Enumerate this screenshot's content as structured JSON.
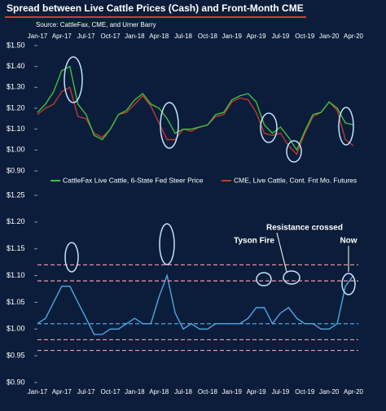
{
  "chart_data": [
    {
      "type": "line",
      "title": "Spread between Live Cattle Prices (Cash) and Front-Month CME",
      "subtitle": "Source: CattleFax, CME, and Urner Barry",
      "categories": [
        "Jan-17",
        null,
        null,
        "Apr-17",
        null,
        null,
        "Jul-17",
        null,
        null,
        "Oct-17",
        null,
        null,
        "Jan-18",
        null,
        null,
        "Apr-18",
        null,
        null,
        "Jul-18",
        null,
        null,
        "Oct-18",
        null,
        null,
        "Jan-19",
        null,
        null,
        "Apr-19",
        null,
        null,
        "Jul-19",
        null,
        null,
        "Oct-19",
        null,
        null,
        "Jan-20",
        null,
        null,
        "Apr-20"
      ],
      "series": [
        {
          "name": "CattleFax Live Cattle, 6-State Fed Steer Price",
          "color": "#3fbf3f",
          "values": [
            1.18,
            1.22,
            1.28,
            1.38,
            1.4,
            1.22,
            1.17,
            1.07,
            1.05,
            1.1,
            1.17,
            1.19,
            1.24,
            1.27,
            1.22,
            1.2,
            1.15,
            1.08,
            1.1,
            1.1,
            1.11,
            1.12,
            1.17,
            1.18,
            1.24,
            1.26,
            1.27,
            1.23,
            1.12,
            1.08,
            1.11,
            1.06,
            1.0,
            1.09,
            1.17,
            1.18,
            1.23,
            1.2,
            1.13,
            1.12
          ]
        },
        {
          "name": "CME, Live Cattle, Cont. Fnt Mo. Futures",
          "color": "#c0392b",
          "values": [
            1.17,
            1.2,
            1.22,
            1.28,
            1.3,
            1.16,
            1.15,
            1.08,
            1.06,
            1.1,
            1.17,
            1.18,
            1.22,
            1.26,
            1.21,
            1.13,
            1.05,
            1.05,
            1.1,
            1.09,
            1.11,
            1.12,
            1.16,
            1.17,
            1.23,
            1.25,
            1.24,
            1.18,
            1.08,
            1.07,
            1.08,
            1.02,
            0.98,
            1.08,
            1.16,
            1.18,
            1.23,
            1.19,
            1.05,
            1.02
          ]
        }
      ],
      "ylim": [
        0.9,
        1.5
      ],
      "yticks": [
        {
          "value": 0.9,
          "label": "$0.90"
        },
        {
          "value": 1.0,
          "label": "$1.00"
        },
        {
          "value": 1.1,
          "label": "$1.10"
        },
        {
          "value": 1.2,
          "label": "$1.20"
        },
        {
          "value": 1.3,
          "label": "$1.30"
        },
        {
          "value": 1.4,
          "label": "$1.40"
        },
        {
          "value": 1.5,
          "label": "$1.50"
        }
      ],
      "grid": false
    },
    {
      "type": "line",
      "categories": [
        "Jan-17",
        null,
        null,
        "Apr-17",
        null,
        null,
        "Jul-17",
        null,
        null,
        "Oct-17",
        null,
        null,
        "Jan-18",
        null,
        null,
        "Apr-18",
        null,
        null,
        "Jul-18",
        null,
        null,
        "Oct-18",
        null,
        null,
        "Jan-19",
        null,
        null,
        "Apr-19",
        null,
        null,
        "Jul-19",
        null,
        null,
        "Oct-19",
        null,
        null,
        "Jan-20",
        null,
        null,
        "Apr-20"
      ],
      "series": [
        {
          "color": "#4aa8e8",
          "values": [
            1.01,
            1.02,
            1.05,
            1.08,
            1.08,
            1.05,
            1.02,
            0.99,
            0.99,
            1.0,
            1.0,
            1.01,
            1.02,
            1.01,
            1.01,
            1.06,
            1.1,
            1.03,
            1.0,
            1.01,
            1.0,
            1.0,
            1.01,
            1.01,
            1.01,
            1.01,
            1.02,
            1.04,
            1.04,
            1.01,
            1.03,
            1.04,
            1.02,
            1.01,
            1.01,
            1.0,
            1.0,
            1.01,
            1.08,
            1.1
          ]
        }
      ],
      "ylim": [
        0.9,
        1.25
      ],
      "yticks": [
        {
          "value": 0.9,
          "label": "$0.90"
        },
        {
          "value": 0.95,
          "label": "$0.95"
        },
        {
          "value": 1.0,
          "label": "$1.00"
        },
        {
          "value": 1.05,
          "label": "$1.05"
        },
        {
          "value": 1.1,
          "label": "$1.10"
        },
        {
          "value": 1.15,
          "label": "$1.15"
        },
        {
          "value": 1.2,
          "label": "$1.20"
        },
        {
          "value": 1.25,
          "label": "$1.25"
        }
      ],
      "reference_lines": [
        {
          "value": 1.12,
          "color": "#f29aa8"
        },
        {
          "value": 1.09,
          "color": "#f29aa8"
        },
        {
          "value": 1.01,
          "color": "#4aa8e8"
        },
        {
          "value": 0.98,
          "color": "#f29aa8"
        },
        {
          "value": 0.96,
          "color": "#f29aa8"
        }
      ],
      "annotations": [
        "Tyson Fire",
        "Resistance crossed",
        "Now"
      ],
      "grid": false
    }
  ]
}
